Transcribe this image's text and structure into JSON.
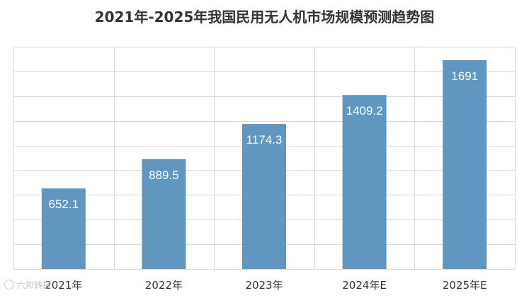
{
  "chart_data": {
    "type": "bar",
    "title": "2021年-2025年我国民用无人机市场规模预测趋势图",
    "categories": [
      "2021年",
      "2022年",
      "2023年",
      "2024年E",
      "2025年E"
    ],
    "values": [
      652.1,
      889.5,
      1174.3,
      1409.2,
      1691
    ],
    "value_labels": [
      "652.1",
      "889.5",
      "1174.3",
      "1409.2",
      "1691"
    ],
    "ylim": [
      0,
      1800
    ],
    "y_gridlines": 9,
    "grid": true,
    "legend": "none",
    "bar_color": "#5f97c1",
    "label_color": "#ffffff",
    "grid_color": "#d9d9d9"
  },
  "watermark": {
    "text": "六邦转接"
  }
}
